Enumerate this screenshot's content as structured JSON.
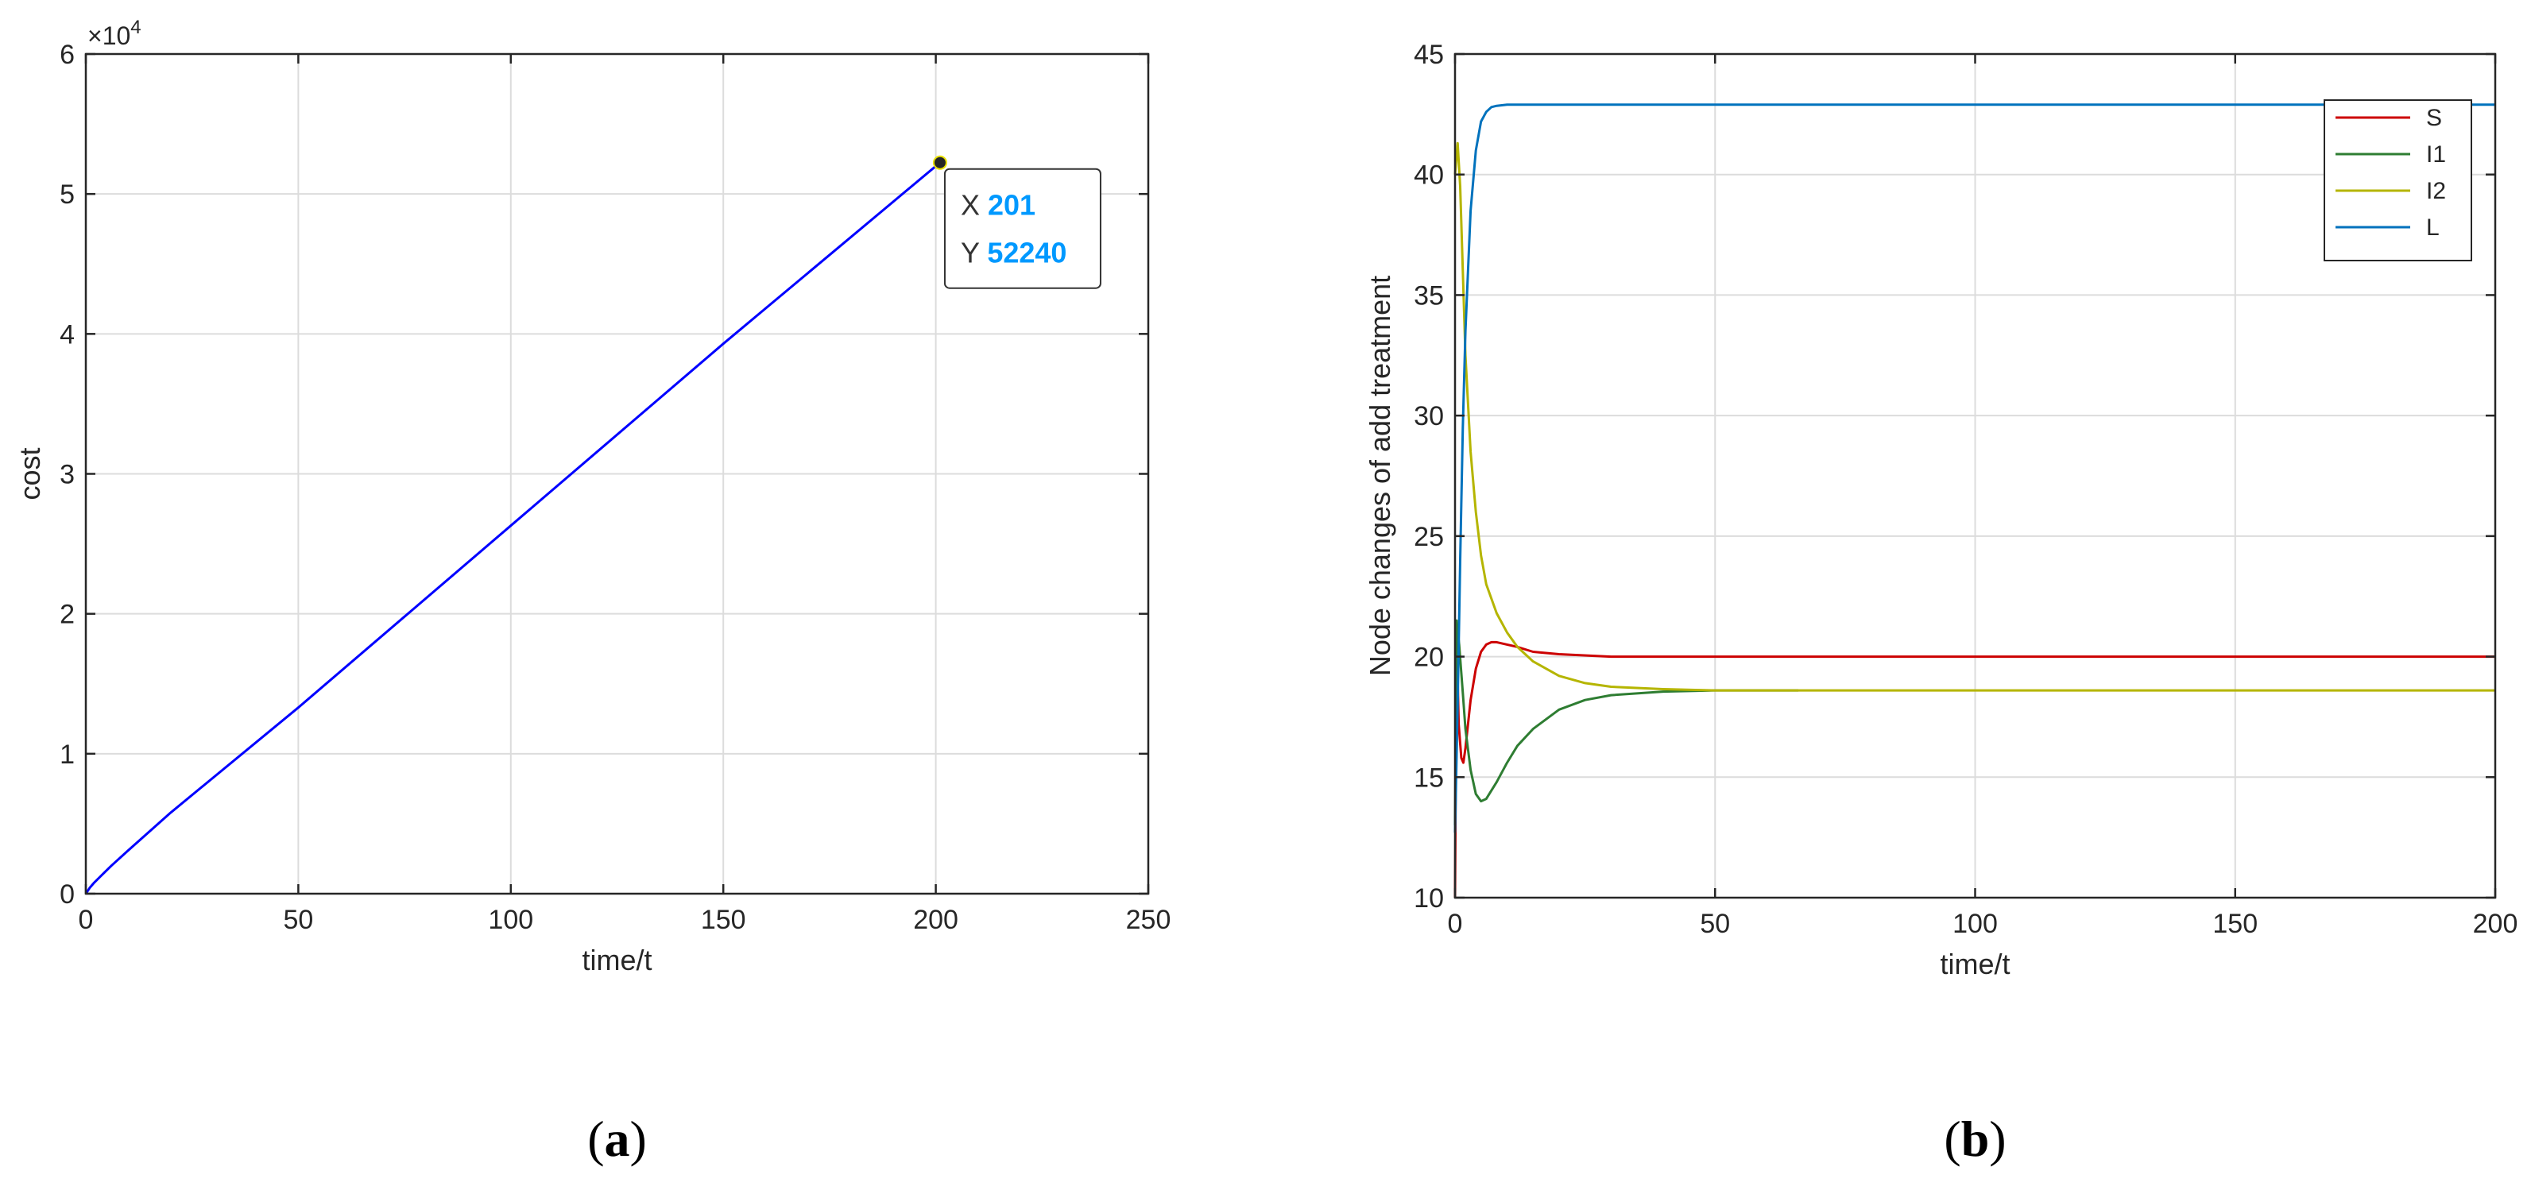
{
  "panels": [
    {
      "id": "a",
      "label_open": "(",
      "label_letter": "a",
      "label_close": ")"
    },
    {
      "id": "b",
      "label_open": "(",
      "label_letter": "b",
      "label_close": ")"
    }
  ],
  "chart_data": [
    {
      "type": "line",
      "xlabel": "time/t",
      "ylabel": "cost",
      "exponent_label": "×10",
      "exponent_power": "4",
      "xlim": [
        0,
        250
      ],
      "ylim": [
        0,
        60000
      ],
      "xticks": [
        0,
        50,
        100,
        150,
        200,
        250
      ],
      "yticks": [
        0,
        10000,
        20000,
        30000,
        40000,
        50000,
        60000
      ],
      "ytick_labels": [
        "0",
        "1",
        "2",
        "3",
        "4",
        "5",
        "6"
      ],
      "grid": true,
      "series": [
        {
          "color": "#0000ff",
          "x": [
            0,
            1,
            2,
            4,
            6,
            10,
            20,
            50,
            100,
            150,
            201
          ],
          "y": [
            0,
            450,
            800,
            1400,
            2000,
            3100,
            5800,
            13300,
            26300,
            39300,
            52240
          ]
        }
      ],
      "datatip": {
        "x_label": "X",
        "x_value": "201",
        "y_label": "Y",
        "y_value": "52240",
        "x": 201,
        "y": 52240,
        "value_color": "#0099ff"
      }
    },
    {
      "type": "line",
      "xlabel": "time/t",
      "ylabel": "Node changes of add treatment",
      "xlim": [
        0,
        200
      ],
      "ylim": [
        10,
        45
      ],
      "xticks": [
        0,
        50,
        100,
        150,
        200
      ],
      "yticks": [
        10,
        15,
        20,
        25,
        30,
        35,
        40,
        45
      ],
      "grid": true,
      "legend": "top-right",
      "series": [
        {
          "name": "S",
          "color": "#cc0000",
          "x": [
            0,
            0.3,
            0.7,
            1.2,
            1.6,
            2,
            3,
            4,
            5,
            6,
            7,
            8,
            10,
            12,
            15,
            20,
            30,
            40,
            60,
            100,
            200
          ],
          "y": [
            10,
            21,
            17.2,
            15.8,
            15.6,
            16.2,
            18.2,
            19.5,
            20.2,
            20.5,
            20.6,
            20.6,
            20.5,
            20.4,
            20.2,
            20.1,
            20.0,
            20.0,
            20.0,
            20.0,
            20.0
          ]
        },
        {
          "name": "I1",
          "color": "#2e7d32",
          "x": [
            0,
            0.3,
            0.8,
            1.5,
            2,
            3,
            4,
            5,
            6,
            8,
            10,
            12,
            15,
            20,
            25,
            30,
            40,
            50,
            66
          ],
          "y": [
            13,
            21.5,
            20.5,
            18.5,
            17,
            15.3,
            14.3,
            14.0,
            14.1,
            14.8,
            15.6,
            16.3,
            17.0,
            17.8,
            18.2,
            18.4,
            18.55,
            18.6,
            18.6
          ]
        },
        {
          "name": "I2",
          "color": "#b5b500",
          "x": [
            0,
            0.5,
            1,
            1.5,
            2,
            3,
            4,
            5,
            6,
            8,
            10,
            12,
            15,
            20,
            25,
            30,
            40,
            50,
            60,
            100,
            150,
            200
          ],
          "y": [
            40,
            41.3,
            39.5,
            36,
            32.5,
            28.5,
            26,
            24.2,
            23,
            21.8,
            21,
            20.4,
            19.8,
            19.2,
            18.9,
            18.75,
            18.65,
            18.6,
            18.6,
            18.6,
            18.6,
            18.6
          ]
        },
        {
          "name": "L",
          "color": "#0072bd",
          "x": [
            0,
            0.5,
            1,
            1.5,
            2,
            3,
            4,
            5,
            6,
            7,
            8,
            10,
            15,
            20,
            50,
            100,
            150,
            200
          ],
          "y": [
            12.7,
            18,
            24,
            29.5,
            33.5,
            38.5,
            41,
            42.2,
            42.6,
            42.8,
            42.85,
            42.9,
            42.9,
            42.9,
            42.9,
            42.9,
            42.9,
            42.9
          ]
        }
      ]
    }
  ]
}
